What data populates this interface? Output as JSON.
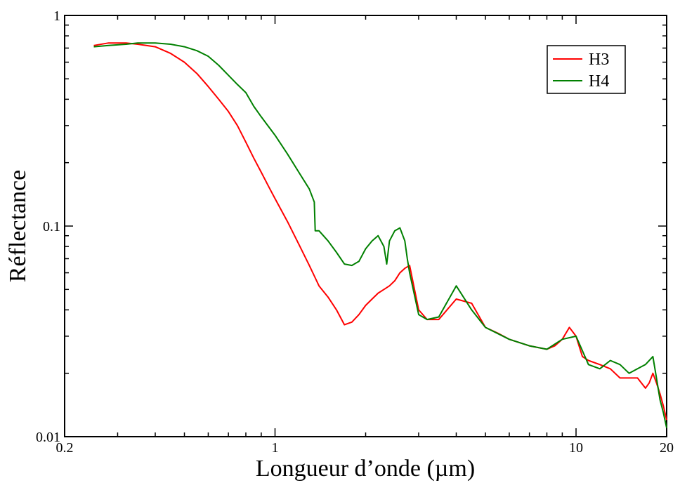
{
  "chart_data": {
    "type": "line",
    "title": "",
    "xlabel": "Longueur d’onde (µm)",
    "ylabel": "Réflectance",
    "x_scale": "log",
    "y_scale": "log",
    "xlim": [
      0.2,
      20
    ],
    "ylim": [
      0.01,
      1
    ],
    "grid": false,
    "legend_position": "top-right",
    "x_tick_labels": [
      {
        "value": 0.2,
        "label": "0.2"
      },
      {
        "value": 1,
        "label": "1"
      },
      {
        "value": 10,
        "label": "10"
      },
      {
        "value": 20,
        "label": "20"
      }
    ],
    "y_tick_labels": [
      {
        "value": 0.01,
        "label": "0.01"
      },
      {
        "value": 0.1,
        "label": "0.1"
      },
      {
        "value": 1,
        "label": "1"
      }
    ],
    "series": [
      {
        "name": "H3",
        "color": "#ff0000",
        "x": [
          0.25,
          0.28,
          0.32,
          0.35,
          0.4,
          0.45,
          0.5,
          0.55,
          0.6,
          0.65,
          0.7,
          0.75,
          0.8,
          0.85,
          0.9,
          0.95,
          1.0,
          1.1,
          1.2,
          1.3,
          1.35,
          1.4,
          1.5,
          1.6,
          1.7,
          1.8,
          1.9,
          2.0,
          2.1,
          2.2,
          2.3,
          2.4,
          2.5,
          2.6,
          2.7,
          2.8,
          3.0,
          3.2,
          3.5,
          4.0,
          4.5,
          5.0,
          5.5,
          6.0,
          7.0,
          8.0,
          8.5,
          9.0,
          9.5,
          10.0,
          10.5,
          11.0,
          12.0,
          13.0,
          14.0,
          15.0,
          16.0,
          17.0,
          17.5,
          18.0,
          18.5,
          19.0,
          19.5,
          20.0
        ],
        "y": [
          0.72,
          0.74,
          0.74,
          0.73,
          0.71,
          0.66,
          0.6,
          0.53,
          0.46,
          0.4,
          0.35,
          0.3,
          0.25,
          0.21,
          0.18,
          0.155,
          0.135,
          0.105,
          0.082,
          0.065,
          0.058,
          0.052,
          0.046,
          0.04,
          0.034,
          0.035,
          0.038,
          0.042,
          0.045,
          0.048,
          0.05,
          0.052,
          0.055,
          0.06,
          0.063,
          0.065,
          0.04,
          0.036,
          0.036,
          0.045,
          0.043,
          0.033,
          0.031,
          0.029,
          0.027,
          0.026,
          0.027,
          0.029,
          0.033,
          0.03,
          0.024,
          0.023,
          0.022,
          0.021,
          0.019,
          0.019,
          0.019,
          0.017,
          0.018,
          0.02,
          0.018,
          0.016,
          0.014,
          0.012
        ]
      },
      {
        "name": "H4",
        "color": "#008000",
        "x": [
          0.25,
          0.28,
          0.32,
          0.35,
          0.4,
          0.45,
          0.5,
          0.55,
          0.6,
          0.65,
          0.7,
          0.75,
          0.8,
          0.85,
          0.9,
          1.0,
          1.1,
          1.2,
          1.3,
          1.35,
          1.36,
          1.4,
          1.5,
          1.6,
          1.7,
          1.8,
          1.9,
          2.0,
          2.1,
          2.2,
          2.3,
          2.35,
          2.4,
          2.5,
          2.6,
          2.7,
          2.75,
          2.8,
          3.0,
          3.2,
          3.5,
          4.0,
          4.5,
          5.0,
          6.0,
          7.0,
          8.0,
          9.0,
          10.0,
          11.0,
          12.0,
          13.0,
          14.0,
          15.0,
          16.0,
          17.0,
          18.0,
          18.5,
          19.0,
          19.5,
          20.0
        ],
        "y": [
          0.71,
          0.72,
          0.73,
          0.74,
          0.74,
          0.73,
          0.71,
          0.68,
          0.64,
          0.58,
          0.52,
          0.47,
          0.43,
          0.37,
          0.33,
          0.27,
          0.22,
          0.18,
          0.15,
          0.13,
          0.095,
          0.095,
          0.085,
          0.075,
          0.066,
          0.065,
          0.068,
          0.078,
          0.085,
          0.09,
          0.08,
          0.066,
          0.085,
          0.095,
          0.098,
          0.085,
          0.07,
          0.06,
          0.038,
          0.036,
          0.037,
          0.052,
          0.04,
          0.033,
          0.029,
          0.027,
          0.026,
          0.029,
          0.03,
          0.022,
          0.021,
          0.023,
          0.022,
          0.02,
          0.021,
          0.022,
          0.024,
          0.019,
          0.015,
          0.013,
          0.011
        ]
      }
    ]
  }
}
